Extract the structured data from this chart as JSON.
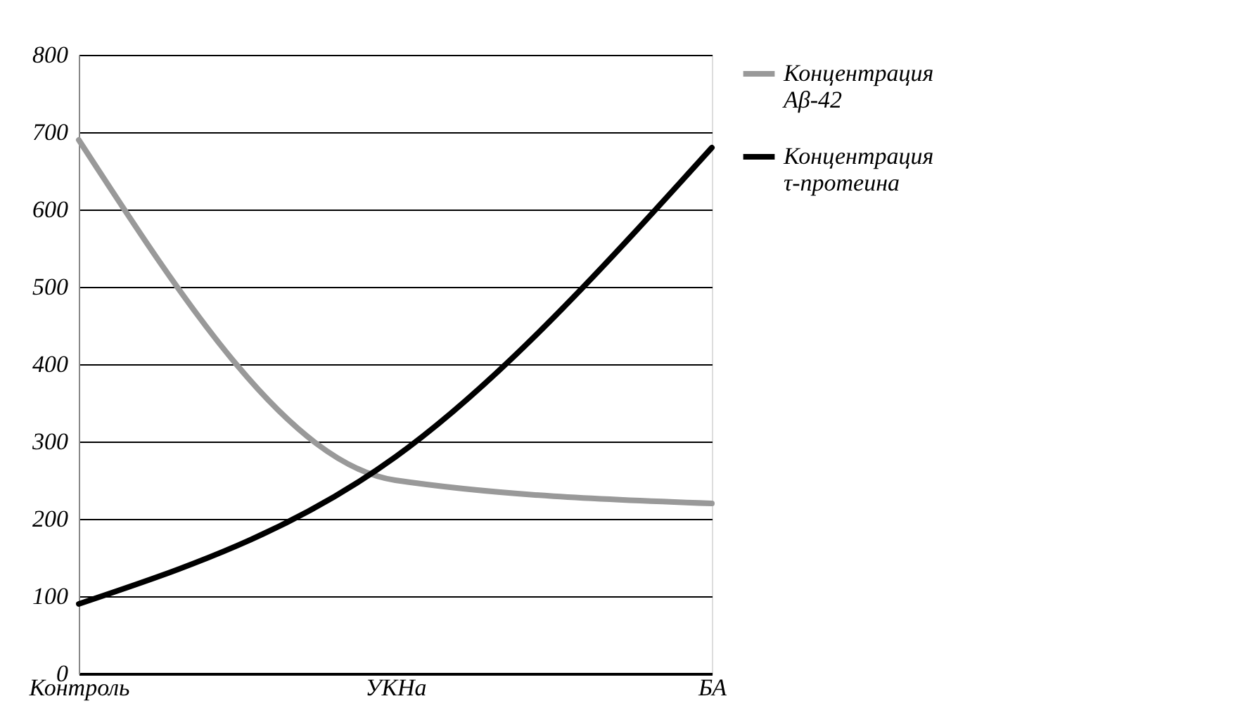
{
  "chart_data": {
    "type": "line",
    "categories": [
      "Контроль",
      "УКНа",
      "БА"
    ],
    "series": [
      {
        "name": "Концентрация Aβ-42",
        "color": "#999999",
        "values": [
          690,
          250,
          220
        ]
      },
      {
        "name": "Концентрация τ-протеина",
        "color": "#000000",
        "values": [
          90,
          280,
          680
        ]
      }
    ],
    "ylim": [
      0,
      800
    ],
    "yticks": [
      0,
      100,
      200,
      300,
      400,
      500,
      600,
      700,
      800
    ],
    "grid": "y",
    "legend": "right",
    "line_style": "solid"
  }
}
